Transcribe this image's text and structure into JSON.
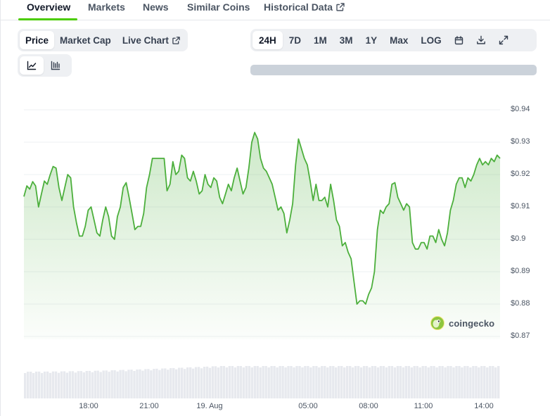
{
  "tabs": [
    {
      "label": "Overview",
      "active": true
    },
    {
      "label": "Markets"
    },
    {
      "label": "News"
    },
    {
      "label": "Similar Coins"
    },
    {
      "label": "Historical Data",
      "icon": "external-link-icon"
    }
  ],
  "chart_type_toggle": {
    "price": "Price",
    "market_cap": "Market Cap",
    "live_chart": "Live Chart"
  },
  "time_ranges": [
    "24H",
    "7D",
    "1M",
    "3M",
    "1Y",
    "Max",
    "LOG"
  ],
  "active_range": "24H",
  "toolbar_icons": [
    "calendar-icon",
    "download-icon",
    "expand-icon"
  ],
  "view_toggle_icons": [
    "line-chart-icon",
    "candlestick-chart-icon"
  ],
  "brand": {
    "name": "coingecko",
    "accent": "#4bcc00",
    "line_color": "#4caf3c"
  },
  "chart_data": {
    "type": "area",
    "x_ticks": [
      "18:00",
      "21:00",
      "19. Aug",
      "05:00",
      "08:00",
      "11:00",
      "14:00"
    ],
    "y_ticks": [
      "$0.94",
      "$0.93",
      "$0.92",
      "$0.91",
      "$0.9",
      "$0.89",
      "$0.88",
      "$0.87"
    ],
    "ylim": [
      0.87,
      0.94
    ],
    "grid": true,
    "values": [
      0.9132,
      0.9165,
      0.9155,
      0.9178,
      0.9165,
      0.91,
      0.914,
      0.918,
      0.917,
      0.92,
      0.9225,
      0.922,
      0.916,
      0.912,
      0.916,
      0.92,
      0.919,
      0.91,
      0.905,
      0.901,
      0.901,
      0.904,
      0.909,
      0.91,
      0.906,
      0.902,
      0.901,
      0.906,
      0.91,
      0.907,
      0.901,
      0.9,
      0.907,
      0.91,
      0.916,
      0.9175,
      0.913,
      0.908,
      0.903,
      0.904,
      0.904,
      0.908,
      0.916,
      0.92,
      0.925,
      0.925,
      0.925,
      0.925,
      0.925,
      0.915,
      0.917,
      0.924,
      0.92,
      0.921,
      0.926,
      0.925,
      0.919,
      0.918,
      0.921,
      0.918,
      0.914,
      0.915,
      0.92,
      0.917,
      0.916,
      0.919,
      0.918,
      0.913,
      0.911,
      0.914,
      0.917,
      0.915,
      0.919,
      0.922,
      0.918,
      0.914,
      0.916,
      0.922,
      0.93,
      0.933,
      0.931,
      0.925,
      0.922,
      0.921,
      0.919,
      0.917,
      0.913,
      0.909,
      0.91,
      0.908,
      0.902,
      0.906,
      0.911,
      0.923,
      0.931,
      0.928,
      0.925,
      0.923,
      0.918,
      0.912,
      0.917,
      0.912,
      0.912,
      0.913,
      0.91,
      0.917,
      0.912,
      0.906,
      0.904,
      0.898,
      0.899,
      0.896,
      0.894,
      0.887,
      0.88,
      0.881,
      0.881,
      0.88,
      0.883,
      0.885,
      0.89,
      0.903,
      0.909,
      0.908,
      0.91,
      0.911,
      0.917,
      0.9175,
      0.913,
      0.911,
      0.909,
      0.911,
      0.91,
      0.899,
      0.897,
      0.897,
      0.899,
      0.899,
      0.897,
      0.901,
      0.901,
      0.899,
      0.903,
      0.9,
      0.898,
      0.902,
      0.909,
      0.912,
      0.917,
      0.919,
      0.919,
      0.916,
      0.919,
      0.918,
      0.92,
      0.923,
      0.925,
      0.923,
      0.924,
      0.923,
      0.925,
      0.924,
      0.926,
      0.925
    ]
  }
}
